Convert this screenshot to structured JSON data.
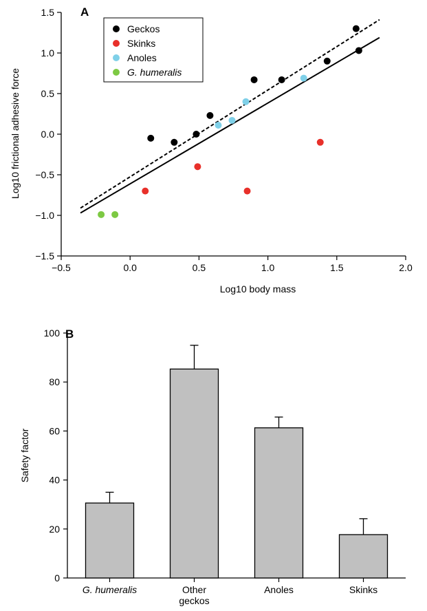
{
  "chart_data": [
    {
      "panel_label": "A",
      "type": "scatter",
      "xlabel": "Log10 body mass",
      "ylabel": "Log10 frictional adhesive force",
      "xlim": [
        -0.5,
        2.0
      ],
      "ylim": [
        -1.5,
        1.5
      ],
      "xticks": [
        "−0.5",
        "0.0",
        "0.5",
        "1.0",
        "1.5",
        "2.0"
      ],
      "yticks": [
        "−1.5",
        "−1.0",
        "−0.5",
        "0.0",
        "0.5",
        "1.0",
        "1.5"
      ],
      "grid": false,
      "legend_position": "top-left",
      "series": [
        {
          "name": "Geckos",
          "color": "#000000",
          "italic": false,
          "points": [
            [
              0.15,
              -0.05
            ],
            [
              0.32,
              -0.1
            ],
            [
              0.48,
              0.0
            ],
            [
              0.58,
              0.23
            ],
            [
              0.9,
              0.67
            ],
            [
              1.1,
              0.67
            ],
            [
              1.43,
              0.9
            ],
            [
              1.64,
              1.3
            ],
            [
              1.66,
              1.03
            ]
          ]
        },
        {
          "name": "Skinks",
          "color": "#e8302a",
          "italic": false,
          "points": [
            [
              0.11,
              -0.7
            ],
            [
              0.49,
              -0.4
            ],
            [
              0.85,
              -0.7
            ],
            [
              1.38,
              -0.1
            ]
          ]
        },
        {
          "name": "Anoles",
          "color": "#7fd0e8",
          "italic": false,
          "points": [
            [
              0.64,
              0.11
            ],
            [
              0.74,
              0.17
            ],
            [
              0.84,
              0.4
            ],
            [
              1.26,
              0.69
            ]
          ]
        },
        {
          "name": "G. humeralis",
          "color": "#7dc943",
          "italic": true,
          "points": [
            [
              -0.21,
              -0.99
            ],
            [
              -0.11,
              -0.99
            ]
          ]
        }
      ],
      "regression_lines": [
        {
          "style": "dashed",
          "x": [
            -0.36,
            1.81
          ],
          "y": [
            -0.91,
            1.41
          ]
        },
        {
          "style": "solid",
          "x": [
            -0.36,
            1.81
          ],
          "y": [
            -0.97,
            1.19
          ]
        }
      ]
    },
    {
      "panel_label": "B",
      "type": "bar",
      "xlabel": "",
      "ylabel": "Safety factor",
      "ylim": [
        0,
        100
      ],
      "yticks": [
        "0",
        "20",
        "40",
        "60",
        "80",
        "100"
      ],
      "categories": [
        {
          "label": "G. humeralis",
          "italic": true
        },
        {
          "label": "Other\ngeckos",
          "italic": false
        },
        {
          "label": "Anoles",
          "italic": false
        },
        {
          "label": "Skinks",
          "italic": false
        }
      ],
      "values": [
        30.6,
        85.3,
        61.3,
        17.7
      ],
      "error_upper": [
        4.4,
        9.7,
        4.4,
        6.5
      ],
      "bar_color": "#c0c0c0",
      "grid": false
    }
  ]
}
